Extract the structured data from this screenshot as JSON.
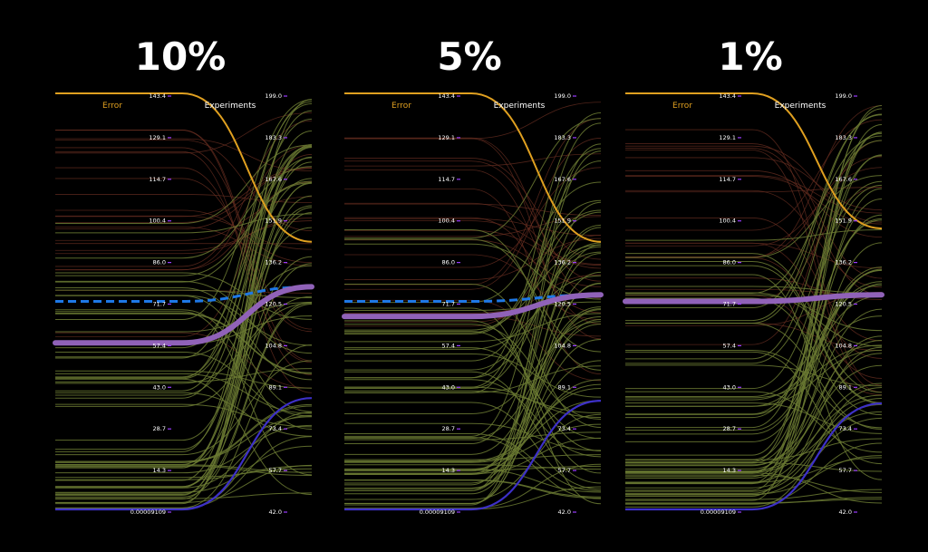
{
  "colors": {
    "background": "#000000",
    "error_axis": "#e0a020",
    "ours_line": "#9062b8",
    "reference_line": "#1e78e6",
    "low_line": "#3d30c8",
    "experiment_lines": "#6b7a33",
    "background_lines": "#6a2f22",
    "tick_mark": "#9a3cff"
  },
  "chart_data": [
    {
      "type": "parallel_coordinates",
      "title": "10%",
      "axes": [
        {
          "name": "Error",
          "ticks": [
            "143.4",
            "129.1",
            "114.7",
            "100.4",
            "86.0",
            "71.7",
            "57.4",
            "43.0",
            "28.7",
            "14.3",
            "0.00009109"
          ]
        },
        {
          "name": "Experiments",
          "ticks": [
            "199.0",
            "183.3",
            "167.6",
            "151.9",
            "136.2",
            "120.5",
            "104.8",
            "89.1",
            "73.4",
            "57.7",
            "42.0"
          ]
        }
      ],
      "highlight_lines": [
        {
          "style": "top",
          "values": [
            143.4,
            143
          ]
        },
        {
          "style": "dashed",
          "values": [
            71.7,
            126
          ]
        },
        {
          "style": "thick",
          "values": [
            57.4,
            126
          ]
        },
        {
          "style": "low",
          "values": [
            9.109e-05,
            84
          ]
        }
      ]
    },
    {
      "type": "parallel_coordinates",
      "title": "5%",
      "axes": [
        {
          "name": "Error",
          "ticks": [
            "143.4",
            "129.1",
            "114.7",
            "100.4",
            "86.0",
            "71.7",
            "57.4",
            "43.0",
            "28.7",
            "14.3",
            "0.00009109"
          ]
        },
        {
          "name": "Experiments",
          "ticks": [
            "199.0",
            "183.3",
            "167.6",
            "151.9",
            "136.2",
            "120.5",
            "104.8",
            "89.1",
            "73.4",
            "57.7",
            "42.0"
          ]
        }
      ],
      "highlight_lines": [
        {
          "style": "top",
          "values": [
            143.4,
            143
          ]
        },
        {
          "style": "dashed",
          "values": [
            71.7,
            123
          ]
        },
        {
          "style": "thick",
          "values": [
            66.5,
            123
          ]
        },
        {
          "style": "low",
          "values": [
            9.109e-05,
            83
          ]
        }
      ]
    },
    {
      "type": "parallel_coordinates",
      "title": "1%",
      "axes": [
        {
          "name": "Error",
          "ticks": [
            "143.4",
            "129.1",
            "114.7",
            "100.4",
            "86.0",
            "71.7",
            "57.4",
            "43.0",
            "28.7",
            "14.3",
            "0.00009109"
          ]
        },
        {
          "name": "Experiments",
          "ticks": [
            "199.0",
            "183.3",
            "167.6",
            "151.9",
            "136.2",
            "120.5",
            "104.8",
            "89.1",
            "73.4",
            "57.7",
            "42.0"
          ]
        }
      ],
      "highlight_lines": [
        {
          "style": "top",
          "values": [
            143.4,
            148
          ]
        },
        {
          "style": "dashed",
          "values": [
            71.7,
            123
          ]
        },
        {
          "style": "thick",
          "values": [
            71.7,
            123
          ]
        },
        {
          "style": "low",
          "values": [
            9.109e-05,
            82
          ]
        }
      ]
    }
  ]
}
